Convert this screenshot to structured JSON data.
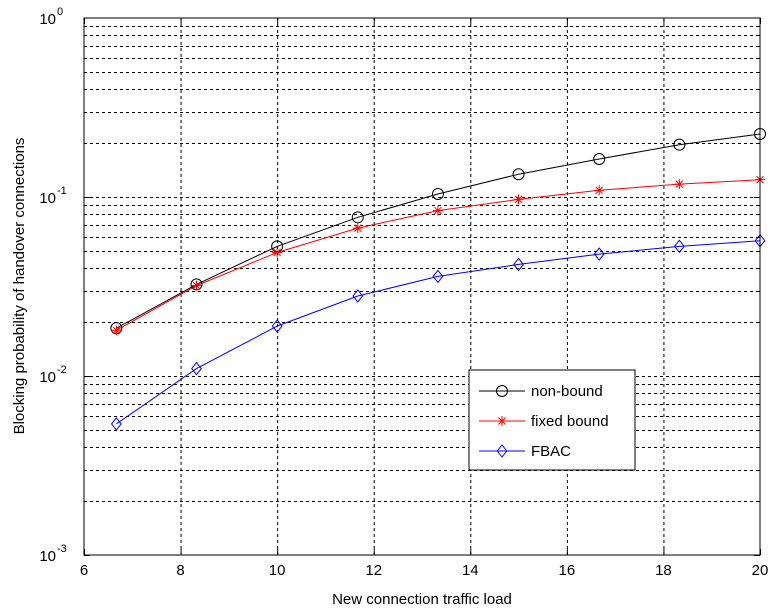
{
  "chart_data": {
    "type": "line",
    "xlabel": "New connection traffic load",
    "ylabel": "Blocking probability of handover connections",
    "xlim": [
      6,
      20
    ],
    "ylim": [
      0.001,
      1
    ],
    "yscale": "log",
    "grid": true,
    "legend_position": "lower-right",
    "xticks": [
      6,
      8,
      10,
      12,
      14,
      16,
      18,
      20
    ],
    "xtick_labels": [
      "6",
      "8",
      "10",
      "12",
      "14",
      "16",
      "18",
      "20"
    ],
    "yticks": [
      {
        "value": 0.001,
        "base": "10",
        "exp": "-3"
      },
      {
        "value": 0.01,
        "base": "10",
        "exp": "-2"
      },
      {
        "value": 0.1,
        "base": "10",
        "exp": "-1"
      },
      {
        "value": 1,
        "base": "10",
        "exp": "0"
      }
    ],
    "x": [
      6.67,
      8.33,
      10.0,
      11.67,
      13.33,
      15.0,
      16.67,
      18.33,
      20.0
    ],
    "series": [
      {
        "name": "non-bound",
        "color": "#000000",
        "marker": "circle",
        "values": [
          0.0185,
          0.0325,
          0.053,
          0.077,
          0.104,
          0.134,
          0.163,
          0.196,
          0.225
        ]
      },
      {
        "name": "fixed bound",
        "color": "#ff0000",
        "marker": "star",
        "values": [
          0.018,
          0.032,
          0.049,
          0.067,
          0.084,
          0.097,
          0.109,
          0.118,
          0.125
        ]
      },
      {
        "name": "FBAC",
        "color": "#0000ff",
        "marker": "diamond",
        "values": [
          0.0054,
          0.011,
          0.019,
          0.028,
          0.036,
          0.042,
          0.048,
          0.053,
          0.057
        ]
      }
    ]
  }
}
